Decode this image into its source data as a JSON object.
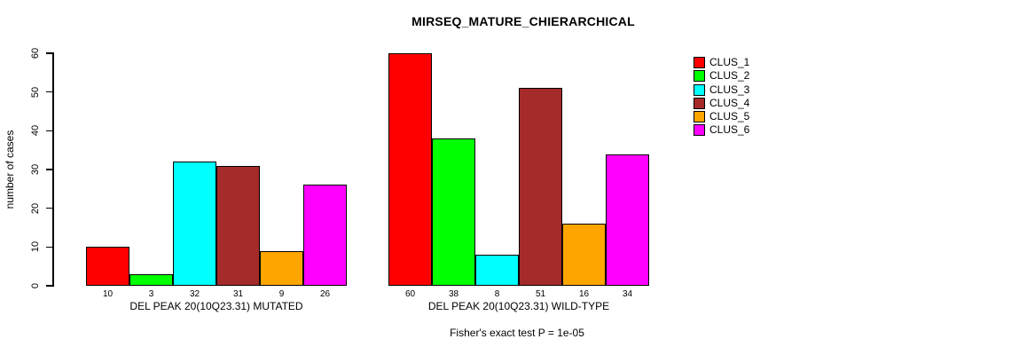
{
  "chart_data": {
    "type": "bar",
    "title": "MIRSEQ_MATURE_CHIERARCHICAL",
    "ylabel": "number of cases",
    "xlabel": "",
    "ylim": [
      0,
      60
    ],
    "yticks": [
      0,
      10,
      20,
      30,
      40,
      50,
      60
    ],
    "grid": false,
    "legend_position": "right",
    "categories": [
      "DEL PEAK 20(10Q23.31) MUTATED",
      "DEL PEAK 20(10Q23.31) WILD-TYPE"
    ],
    "series": [
      {
        "name": "CLUS_1",
        "color": "#FF0000",
        "values": [
          10,
          60
        ]
      },
      {
        "name": "CLUS_2",
        "color": "#00FF00",
        "values": [
          3,
          38
        ]
      },
      {
        "name": "CLUS_3",
        "color": "#00FFFF",
        "values": [
          32,
          8
        ]
      },
      {
        "name": "CLUS_4",
        "color": "#A52A2A",
        "values": [
          31,
          51
        ]
      },
      {
        "name": "CLUS_5",
        "color": "#FFA500",
        "values": [
          9,
          16
        ]
      },
      {
        "name": "CLUS_6",
        "color": "#FF00FF",
        "values": [
          26,
          34
        ]
      }
    ],
    "bar_value_labels_shown": true,
    "bar_border_color": "#000000",
    "annotation": "Fisher's exact test P = 1e-05"
  }
}
